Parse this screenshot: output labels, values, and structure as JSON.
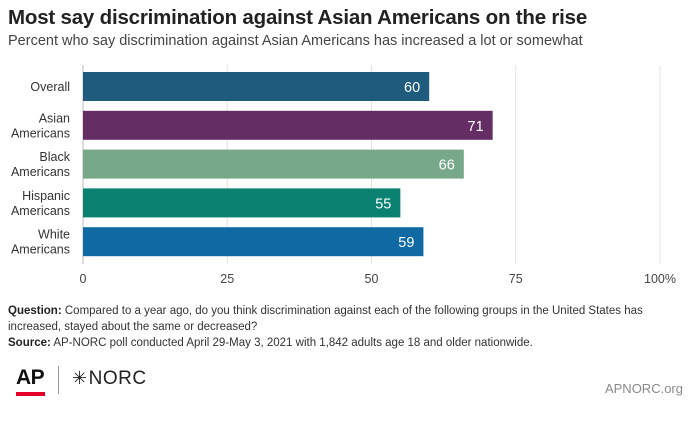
{
  "header": {
    "title": "Most say discrimination against Asian Americans on the rise",
    "subtitle": "Percent who say discrimination against Asian Americans has increased a lot or somewhat"
  },
  "chart_data": {
    "type": "bar",
    "orientation": "horizontal",
    "categories": [
      [
        "Overall"
      ],
      [
        "Asian",
        "Americans"
      ],
      [
        "Black",
        "Americans"
      ],
      [
        "Hispanic",
        "Americans"
      ],
      [
        "White",
        "Americans"
      ]
    ],
    "values": [
      60,
      71,
      66,
      55,
      59
    ],
    "colors": [
      "#1e5b7c",
      "#642d64",
      "#78a88a",
      "#0b8172",
      "#0f6aa3"
    ],
    "xlim": [
      0,
      100
    ],
    "xticks": [
      0,
      25,
      50,
      75,
      100
    ],
    "xtick_labels": [
      "0",
      "25",
      "50",
      "75",
      "100%"
    ],
    "grid": true,
    "value_labels": "inside-end"
  },
  "notes": {
    "question_label": "Question:",
    "question_text": " Compared to a year ago, do you think discrimination against each of the following groups in the United States has increased, stayed about the same or decreased?",
    "source_label": "Source:",
    "source_text": " AP-NORC poll conducted April 29-May 3, 2021 with 1,842 adults age 18 and older nationwide."
  },
  "footer": {
    "ap_logo": "AP",
    "norc_logo": "NORC",
    "website": "APNORC.org"
  }
}
